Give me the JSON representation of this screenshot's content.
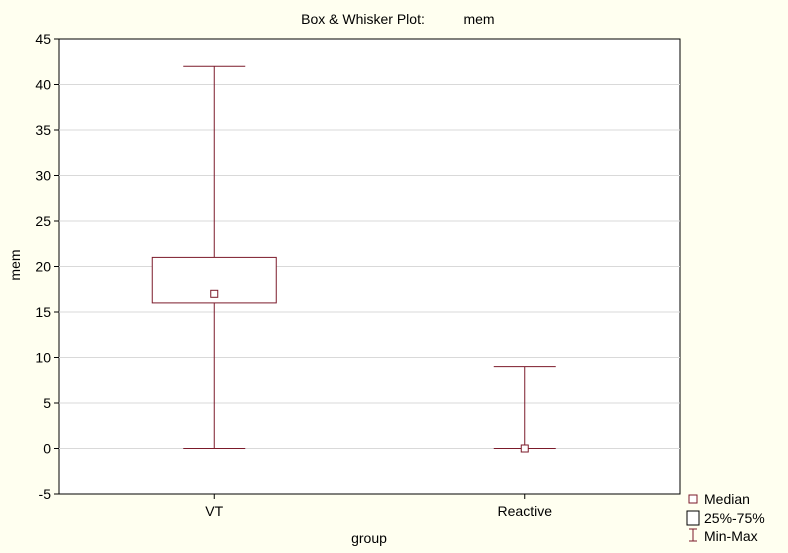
{
  "chart_data": {
    "type": "box",
    "title_prefix": "Box & Whisker Plot:",
    "title_var": "mem",
    "xlabel": "group",
    "ylabel": "mem",
    "ylim": [
      -5,
      45
    ],
    "yticks": [
      -5,
      0,
      5,
      10,
      15,
      20,
      25,
      30,
      35,
      40,
      45
    ],
    "grid": true,
    "legend_position": "bottom-right",
    "categories": [
      "VT",
      "Reactive"
    ],
    "boxes": [
      {
        "category": "VT",
        "min": 0,
        "q1": 16,
        "median": 17,
        "q3": 21,
        "max": 42
      },
      {
        "category": "Reactive",
        "min": 0,
        "q1": 0,
        "median": 0,
        "q3": 0,
        "max": 9
      }
    ],
    "legend": [
      "Median",
      "25%-75%",
      "Min-Max"
    ],
    "colors": {
      "stroke": "#7b1a2a",
      "background": "#fffff0",
      "plot_bg": "#ffffff",
      "grid": "#d9d9d9"
    }
  }
}
